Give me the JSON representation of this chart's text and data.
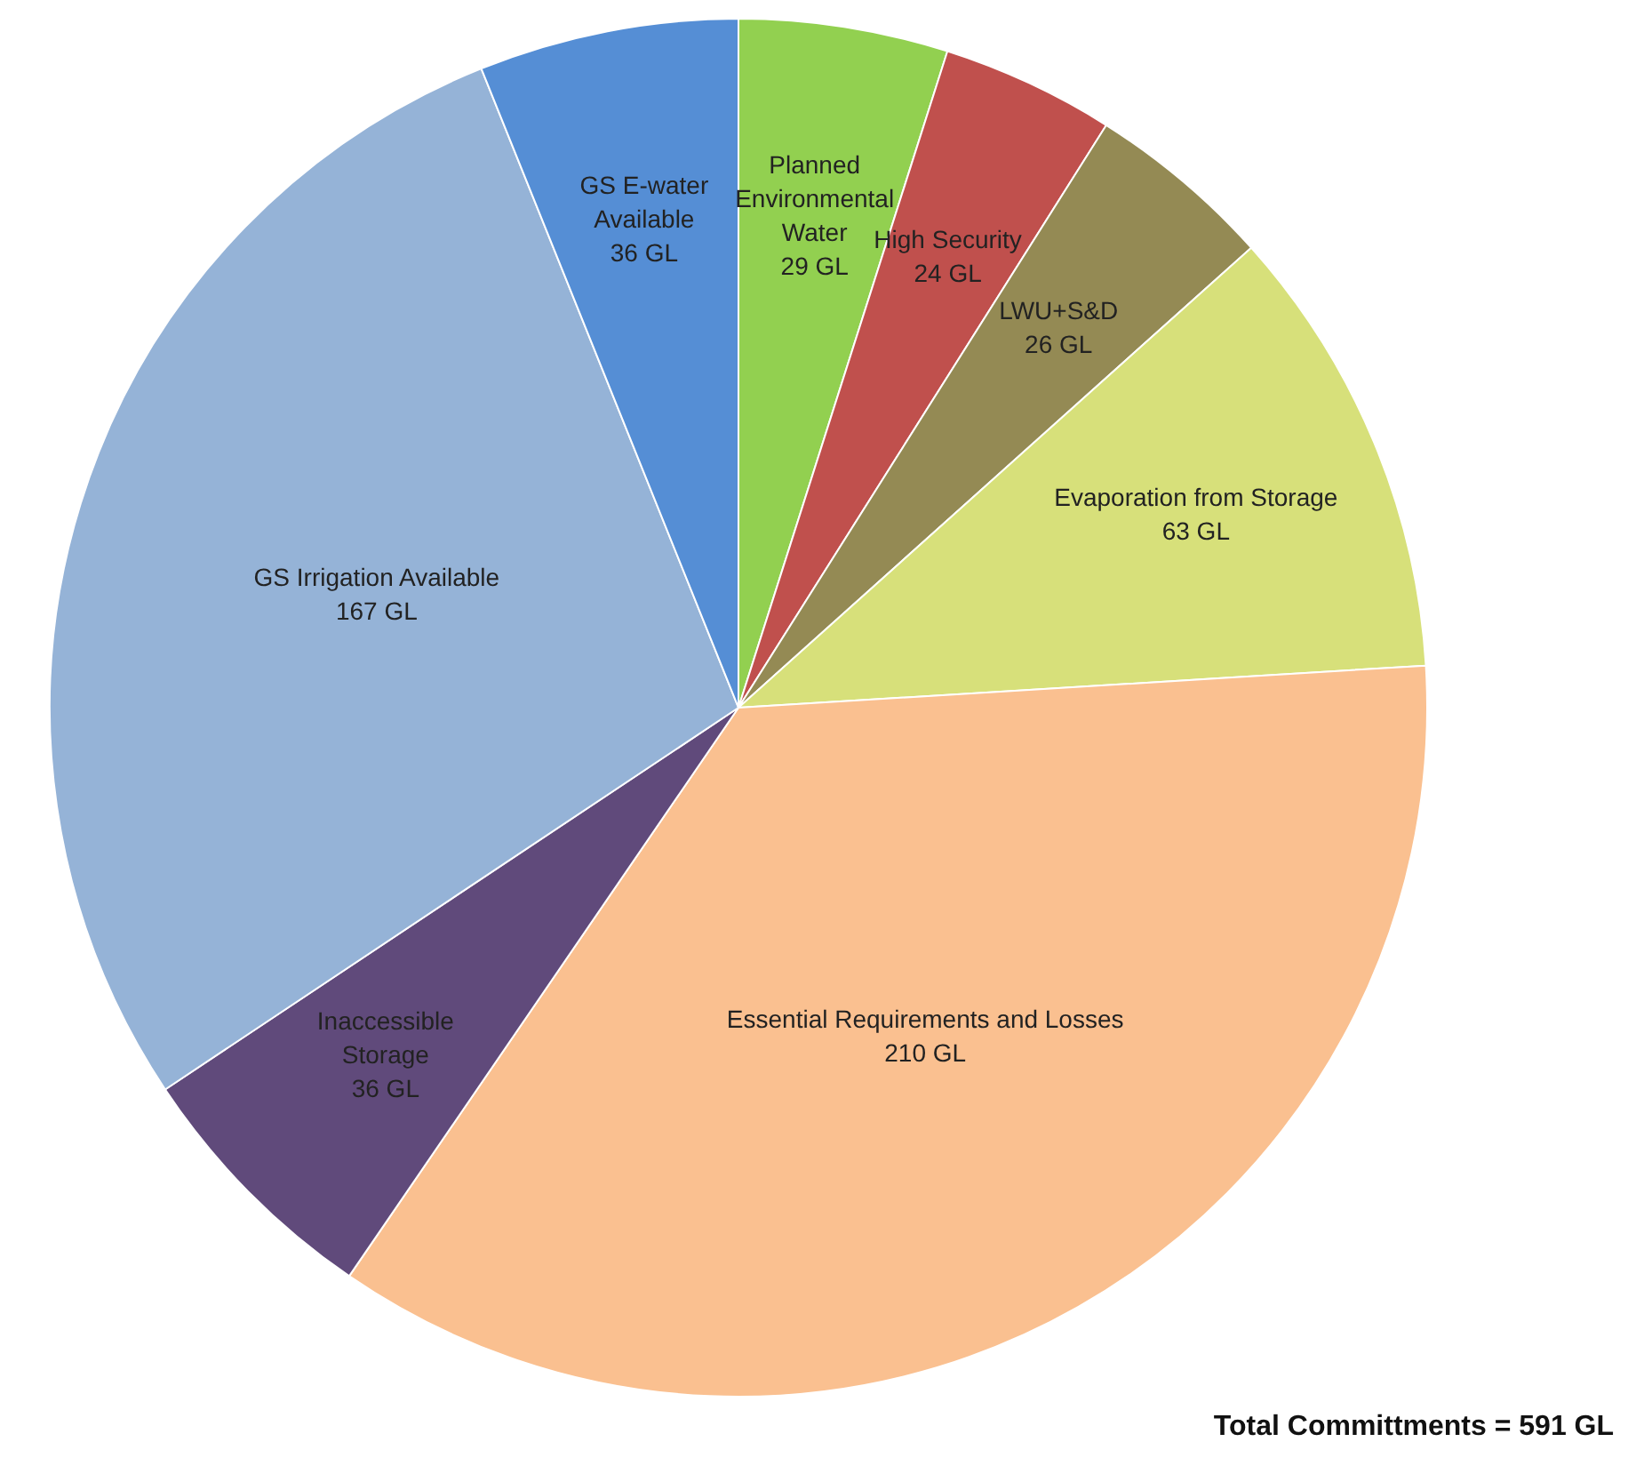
{
  "chart_data": {
    "type": "pie",
    "categories": [
      "Planned Environmental Water",
      "High Security",
      "LWU+S&D",
      "Evaporation from Storage",
      "Essential Requirements and Losses",
      "Inaccessible Storage",
      "GS Irrigation Available",
      "GS E-water Available"
    ],
    "values": [
      29,
      24,
      26,
      63,
      210,
      36,
      167,
      36
    ],
    "value_labels": [
      "29 GL",
      "24 GL",
      "26 GL",
      "63 GL",
      "210 GL",
      "36 GL",
      "167 GL",
      "36 GL"
    ],
    "colors": [
      "#92d050",
      "#c0504d",
      "#948a54",
      "#d7e07a",
      "#fac090",
      "#604a7b",
      "#95b3d7",
      "#558ed5"
    ],
    "legend": false,
    "annotations": [
      "Total Committments = 591 GL"
    ]
  }
}
